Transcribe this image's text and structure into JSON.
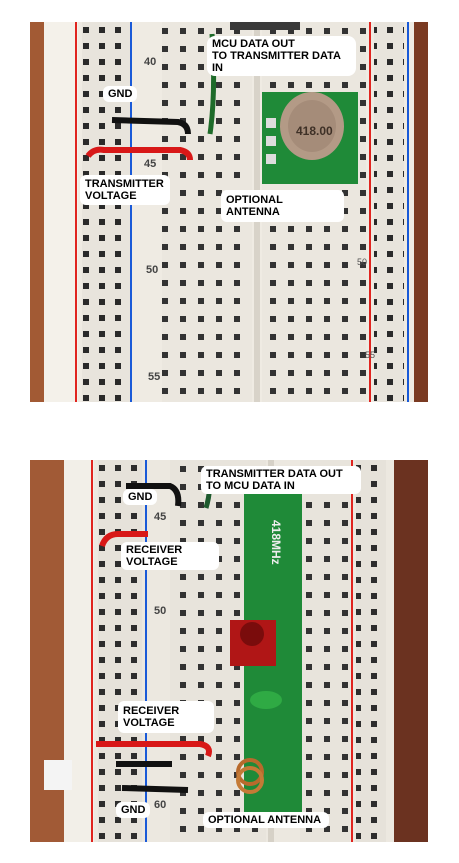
{
  "photo_top": {
    "labels": {
      "mcu": "MCU DATA OUT\nTO TRANSMITTER DATA IN",
      "gnd": "GND",
      "tx_voltage": "TRANSMITTER\nVOLTAGE",
      "antenna": "OPTIONAL ANTENNA"
    },
    "printed": {
      "row40": "40",
      "row45": "45",
      "row50": "50",
      "row55": "55",
      "row50b": "50",
      "row55b": "55",
      "module": "418.00"
    }
  },
  "photo_bottom": {
    "labels": {
      "tx_out": "TRANSMITTER DATA OUT\nTO MCU DATA IN",
      "gnd_top": "GND",
      "rx_voltage_top": "RECEIVER\nVOLTAGE",
      "rx_voltage_bottom": "RECEIVER\nVOLTAGE",
      "gnd_bottom": "GND",
      "antenna": "OPTIONAL ANTENNA"
    },
    "printed": {
      "row45": "45",
      "row50": "50",
      "row60": "60",
      "module": "418MHz"
    }
  }
}
